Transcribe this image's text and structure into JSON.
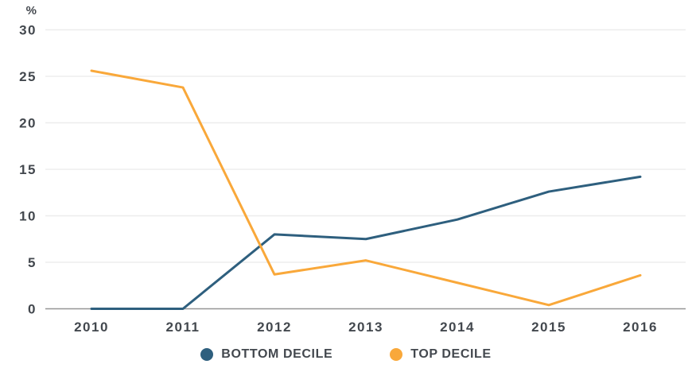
{
  "chart_data": {
    "type": "line",
    "title": "",
    "xlabel": "",
    "ylabel": "%",
    "x": [
      "2010",
      "2011",
      "2012",
      "2013",
      "2014",
      "2015",
      "2016"
    ],
    "series": [
      {
        "name": "BOTTOM DECILE",
        "color": "#2e5f7e",
        "values": [
          0,
          0,
          8.0,
          7.5,
          9.6,
          12.6,
          14.2
        ]
      },
      {
        "name": "TOP DECILE",
        "color": "#f9a83a",
        "values": [
          25.6,
          23.8,
          3.7,
          5.2,
          2.8,
          0.4,
          3.6
        ]
      }
    ],
    "ylim": [
      0,
      30
    ],
    "yticks": [
      0,
      5,
      10,
      15,
      20,
      25,
      30
    ],
    "grid": "horizontal",
    "legend_position": "bottom",
    "colors": {
      "gridline": "#ededed",
      "axis_line": "#969696",
      "text": "#43484e",
      "background": "#ffffff"
    }
  }
}
